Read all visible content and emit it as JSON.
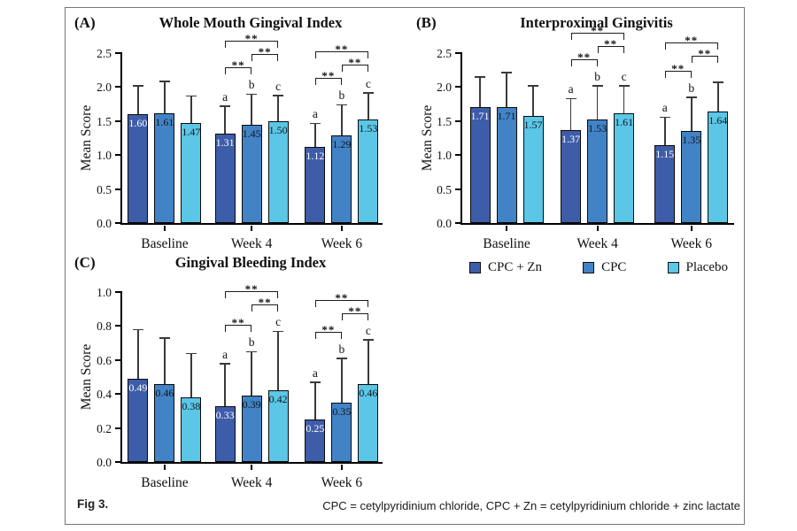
{
  "figure": {
    "label": "Fig 3.",
    "footnote": "CPC = cetylpyridinium chloride, CPC + Zn = cetylpyridinium chloride + zinc lactate"
  },
  "legend": {
    "items": [
      {
        "label": "CPC + Zn",
        "color": "#3E5DA9"
      },
      {
        "label": "CPC",
        "color": "#4283C5"
      },
      {
        "label": "Placebo",
        "color": "#5BC6E6"
      }
    ]
  },
  "colors": {
    "axis": "#000000",
    "error_bar": "#3a3a3a",
    "frame": "#757575",
    "bar_label_on_dark": "#ffffff",
    "bar_label_on_light": "#101520"
  },
  "chart_data": [
    {
      "type": "bar",
      "panel": "(A)",
      "title": "Whole Mouth Gingival Index",
      "ylabel": "Mean Score",
      "ylim": [
        0,
        2.5
      ],
      "yticks": [
        0.0,
        0.5,
        1.0,
        1.5,
        2.0,
        2.5
      ],
      "categories": [
        "Baseline",
        "Week 4",
        "Week 6"
      ],
      "series": [
        {
          "name": "CPC + Zn",
          "color": "#3E5DA9",
          "values": [
            "1.60",
            "1.31",
            "1.12"
          ],
          "err_top": [
            2.02,
            1.72,
            1.47
          ]
        },
        {
          "name": "CPC",
          "color": "#4283C5",
          "values": [
            "1.61",
            "1.45",
            "1.29"
          ],
          "err_top": [
            2.09,
            1.9,
            1.74
          ]
        },
        {
          "name": "Placebo",
          "color": "#5BC6E6",
          "values": [
            "1.47",
            "1.50",
            "1.53"
          ],
          "err_top": [
            1.87,
            1.88,
            1.92
          ]
        }
      ],
      "letters": [
        null,
        [
          "a",
          "b",
          "c"
        ],
        [
          "a",
          "b",
          "c"
        ]
      ],
      "significance": [
        {
          "category_index": 1,
          "pairs": [
            {
              "i": 0,
              "j": 1,
              "label": "**"
            },
            {
              "i": 1,
              "j": 2,
              "label": "**"
            },
            {
              "i": 0,
              "j": 2,
              "label": "**"
            }
          ]
        },
        {
          "category_index": 2,
          "pairs": [
            {
              "i": 0,
              "j": 1,
              "label": "**"
            },
            {
              "i": 1,
              "j": 2,
              "label": "**"
            },
            {
              "i": 0,
              "j": 2,
              "label": "**"
            }
          ]
        }
      ]
    },
    {
      "type": "bar",
      "panel": "(B)",
      "title": "Interproximal Gingivitis",
      "ylabel": "Mean Score",
      "ylim": [
        0,
        2.5
      ],
      "yticks": [
        0.0,
        0.5,
        1.0,
        1.5,
        2.0,
        2.5
      ],
      "categories": [
        "Baseline",
        "Week 4",
        "Week 6"
      ],
      "series": [
        {
          "name": "CPC + Zn",
          "color": "#3E5DA9",
          "values": [
            "1.71",
            "1.37",
            "1.15"
          ],
          "err_top": [
            2.15,
            1.83,
            1.56
          ]
        },
        {
          "name": "CPC",
          "color": "#4283C5",
          "values": [
            "1.71",
            "1.53",
            "1.35"
          ],
          "err_top": [
            2.22,
            2.02,
            1.85
          ]
        },
        {
          "name": "Placebo",
          "color": "#5BC6E6",
          "values": [
            "1.57",
            "1.61",
            "1.64"
          ],
          "err_top": [
            2.02,
            2.02,
            2.07
          ]
        }
      ],
      "letters": [
        null,
        [
          "a",
          "b",
          "c"
        ],
        [
          "a",
          "b",
          null
        ]
      ],
      "significance": [
        {
          "category_index": 1,
          "pairs": [
            {
              "i": 0,
              "j": 1,
              "label": "**"
            },
            {
              "i": 1,
              "j": 2,
              "label": "**"
            },
            {
              "i": 0,
              "j": 2,
              "label": "**"
            }
          ]
        },
        {
          "category_index": 2,
          "pairs": [
            {
              "i": 0,
              "j": 1,
              "label": "**"
            },
            {
              "i": 1,
              "j": 2,
              "label": "**"
            },
            {
              "i": 0,
              "j": 2,
              "label": "**"
            }
          ]
        }
      ]
    },
    {
      "type": "bar",
      "panel": "(C)",
      "title": "Gingival Bleeding Index",
      "ylabel": "Mean Score",
      "ylim": [
        0,
        1.0
      ],
      "yticks": [
        0.0,
        0.2,
        0.4,
        0.6,
        0.8,
        1.0
      ],
      "categories": [
        "Baseline",
        "Week 4",
        "Week 6"
      ],
      "series": [
        {
          "name": "CPC + Zn",
          "color": "#3E5DA9",
          "values": [
            "0.49",
            "0.33",
            "0.25"
          ],
          "err_top": [
            0.78,
            0.58,
            0.47
          ]
        },
        {
          "name": "CPC",
          "color": "#4283C5",
          "values": [
            "0.46",
            "0.39",
            "0.35"
          ],
          "err_top": [
            0.73,
            0.65,
            0.61
          ]
        },
        {
          "name": "Placebo",
          "color": "#5BC6E6",
          "values": [
            "0.38",
            "0.42",
            "0.46"
          ],
          "err_top": [
            0.64,
            0.77,
            0.72
          ]
        }
      ],
      "letters": [
        null,
        [
          "a",
          "b",
          "c"
        ],
        [
          "a",
          "b",
          "c"
        ]
      ],
      "significance": [
        {
          "category_index": 1,
          "pairs": [
            {
              "i": 0,
              "j": 1,
              "label": "**"
            },
            {
              "i": 1,
              "j": 2,
              "label": "**"
            },
            {
              "i": 0,
              "j": 2,
              "label": "**"
            }
          ]
        },
        {
          "category_index": 2,
          "pairs": [
            {
              "i": 0,
              "j": 1,
              "label": "**"
            },
            {
              "i": 1,
              "j": 2,
              "label": "**"
            },
            {
              "i": 0,
              "j": 2,
              "label": "**"
            }
          ]
        }
      ]
    }
  ]
}
